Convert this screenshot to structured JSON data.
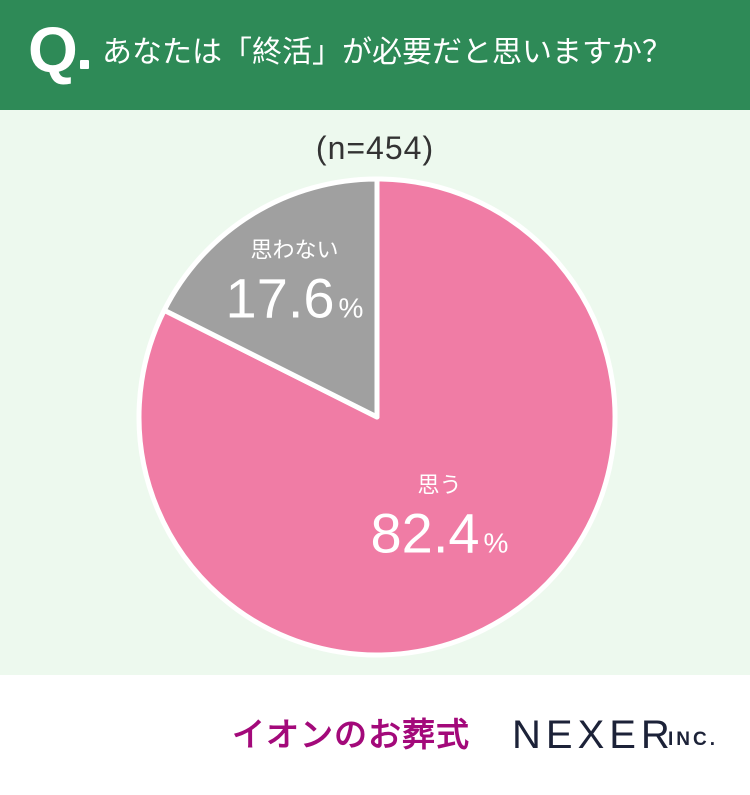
{
  "header": {
    "q_mark": "Q",
    "question": "あなたは「終活」が必要だと思いますか？"
  },
  "chart_data": {
    "type": "pie",
    "title": "あなたは「終活」が必要だと思いますか？",
    "sample_size_label": "(n=454)",
    "slices": [
      {
        "label": "思う",
        "value": 82.4,
        "value_text": "82.4",
        "unit": "%",
        "color": "#f07ca5"
      },
      {
        "label": "思わない",
        "value": 17.6,
        "value_text": "17.6",
        "unit": "%",
        "color": "#a0a0a0"
      }
    ],
    "start_angle": "12 o'clock",
    "direction": "clockwise"
  },
  "colors": {
    "header_bg": "#2e8a57",
    "chart_bg": "#edf9ee",
    "slice_border": "#ffffff"
  },
  "footer": {
    "logo_aeon": "イオンのお葬式",
    "logo_nexer": "NEXER",
    "logo_nexer_suffix": "INC."
  }
}
